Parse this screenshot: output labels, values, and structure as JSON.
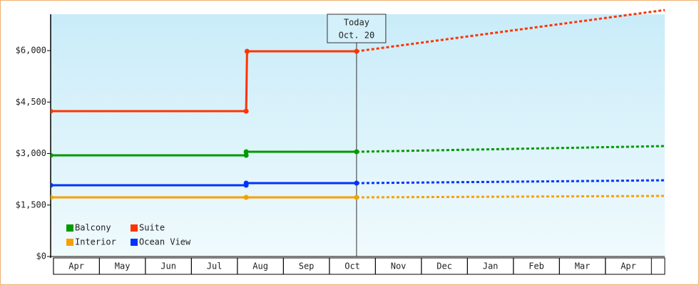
{
  "chart_data": {
    "type": "line",
    "xlim": [
      -0.06,
      13.29
    ],
    "xticks": [
      {
        "value": 0.5,
        "label": "Apr"
      },
      {
        "value": 1.5,
        "label": "May"
      },
      {
        "value": 2.5,
        "label": "Jun"
      },
      {
        "value": 3.5,
        "label": "Jul"
      },
      {
        "value": 4.5,
        "label": "Aug"
      },
      {
        "value": 5.5,
        "label": "Sep"
      },
      {
        "value": 6.5,
        "label": "Oct"
      },
      {
        "value": 7.5,
        "label": "Nov"
      },
      {
        "value": 8.5,
        "label": "Dec"
      },
      {
        "value": 9.5,
        "label": "Jan"
      },
      {
        "value": 10.5,
        "label": "Feb"
      },
      {
        "value": 11.5,
        "label": "Mar"
      },
      {
        "value": 12.5,
        "label": "Apr"
      }
    ],
    "ylim": [
      0,
      7060
    ],
    "yticks": [
      {
        "value": 0,
        "label": "$0"
      },
      {
        "value": 1500,
        "label": "$1,500"
      },
      {
        "value": 3000,
        "label": "$3,000"
      },
      {
        "value": 4500,
        "label": "$4,500"
      },
      {
        "value": 6000,
        "label": "$6,000"
      }
    ],
    "annotation": {
      "x": 6.59,
      "lines": [
        "Today",
        "Oct. 20"
      ]
    },
    "series": [
      {
        "name": "Balcony",
        "color": "#009900",
        "x": [
          -0.06,
          4.19,
          4.19,
          6.59
        ],
        "values": [
          2948,
          2948,
          3052,
          3052
        ],
        "forecast_x": [
          6.59,
          13.29
        ],
        "forecast_values": [
          3052,
          3218
        ]
      },
      {
        "name": "Suite",
        "color": "#ff3300",
        "x": [
          -0.06,
          4.19,
          4.21,
          6.59
        ],
        "values": [
          4235,
          4235,
          5979,
          5979
        ],
        "forecast_x": [
          6.59,
          13.29
        ],
        "forecast_values": [
          5979,
          7183
        ]
      },
      {
        "name": "Interior",
        "color": "#f5a000",
        "x": [
          -0.06,
          4.19,
          6.59
        ],
        "values": [
          1723,
          1723,
          1723
        ],
        "forecast_x": [
          6.59,
          13.29
        ],
        "forecast_values": [
          1723,
          1765
        ]
      },
      {
        "name": "Ocean View",
        "color": "#0033ff",
        "x": [
          -0.06,
          4.19,
          4.19,
          6.59
        ],
        "values": [
          2076,
          2076,
          2138,
          2138
        ],
        "forecast_x": [
          6.59,
          13.29
        ],
        "forecast_values": [
          2138,
          2221
        ]
      }
    ]
  }
}
